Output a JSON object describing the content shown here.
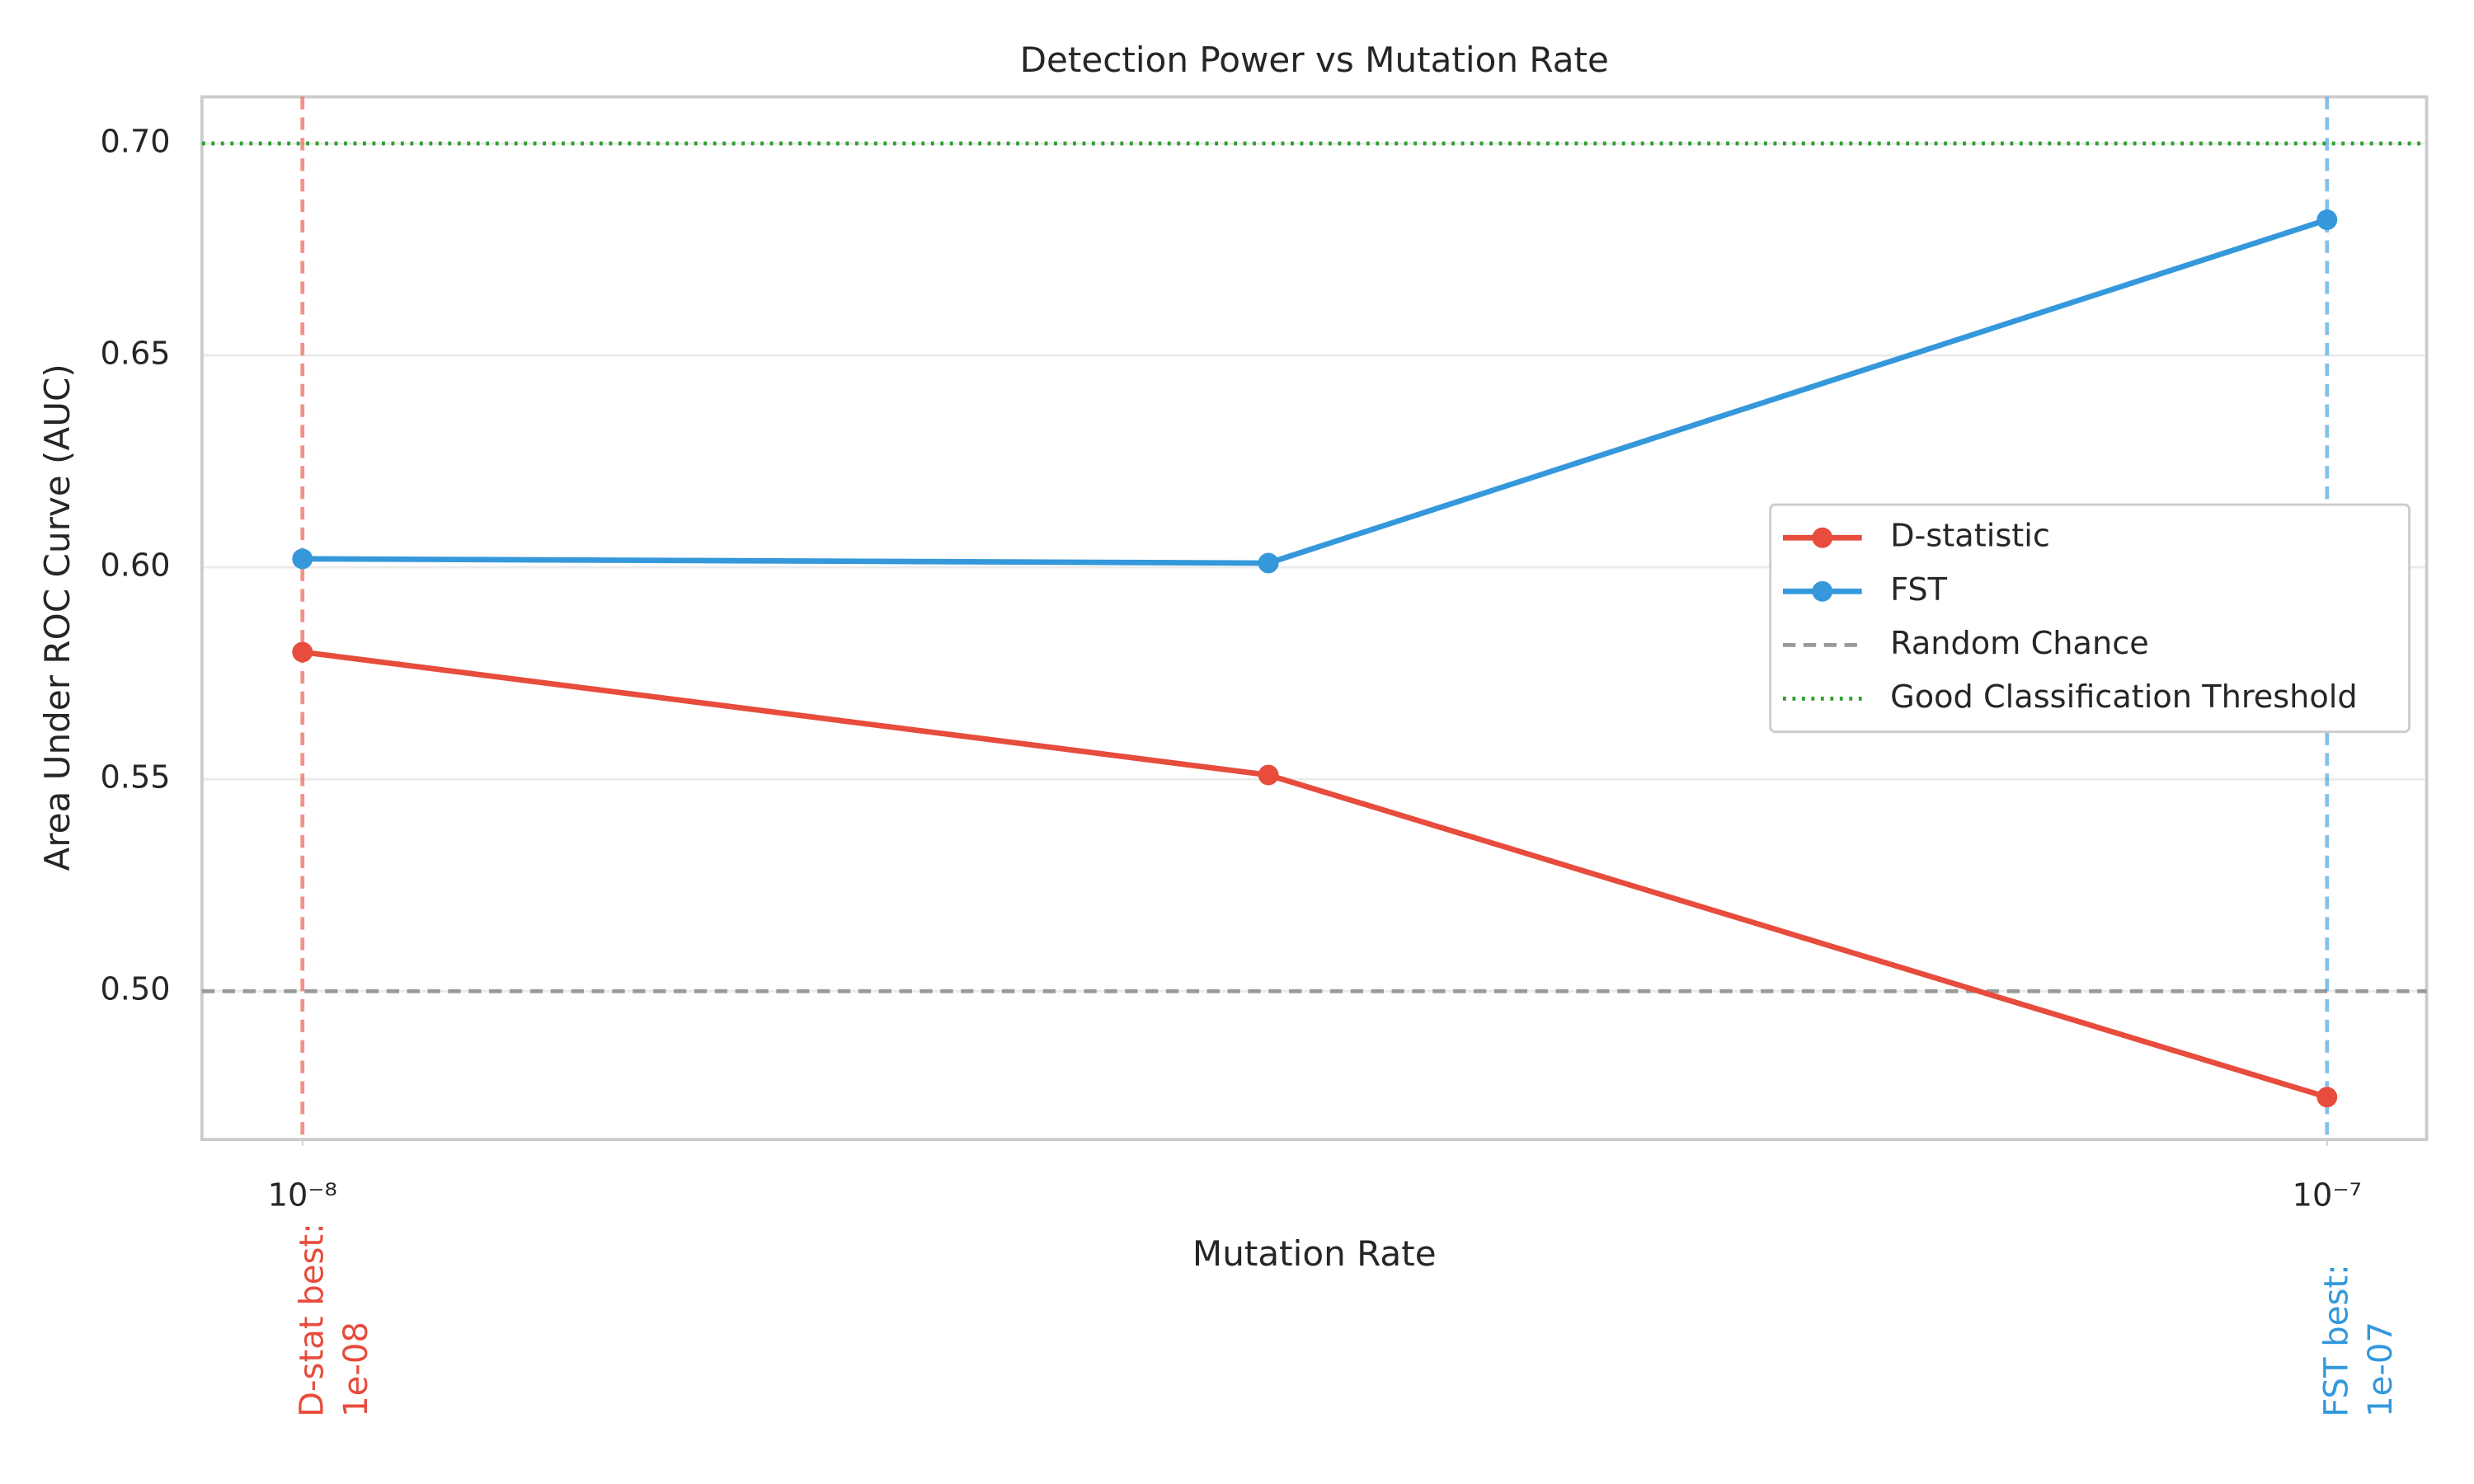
{
  "chart_data": {
    "type": "line",
    "title": "Detection Power vs Mutation Rate",
    "xlabel": "Mutation Rate",
    "ylabel": "Area Under ROC Curve (AUC)",
    "x": [
      1e-08,
      3e-08,
      1e-07
    ],
    "xscale": "log",
    "xlim": [
      8.92e-09,
      1.12e-07
    ],
    "xticks": [
      {
        "value": 1e-08,
        "label": "10⁻⁸"
      },
      {
        "value": 1e-07,
        "label": "10⁻⁷"
      }
    ],
    "ylim": [
      0.465,
      0.711
    ],
    "yticks": [
      {
        "value": 0.5,
        "label": "0.50"
      },
      {
        "value": 0.55,
        "label": "0.55"
      },
      {
        "value": 0.6,
        "label": "0.60"
      },
      {
        "value": 0.65,
        "label": "0.65"
      },
      {
        "value": 0.7,
        "label": "0.70"
      }
    ],
    "grid": true,
    "legend": "center right",
    "series": [
      {
        "name": "D-statistic",
        "color": "#e74c3c",
        "values": [
          0.58,
          0.551,
          0.475
        ]
      },
      {
        "name": "FST",
        "color": "#3498db",
        "values": [
          0.602,
          0.601,
          0.682
        ]
      }
    ],
    "hlines": [
      {
        "name": "Random Chance",
        "y": 0.5,
        "color": "#999999",
        "style": "dashed"
      },
      {
        "name": "Good Classification Threshold",
        "y": 0.7,
        "color": "#2ca02c",
        "style": "dotted"
      }
    ],
    "vlines": [
      {
        "x": 1e-08,
        "color": "#e74c3c",
        "label": [
          "D-stat best:",
          "1e-08"
        ]
      },
      {
        "x": 1e-07,
        "color": "#3498db",
        "label": [
          "FST best:",
          "1e-07"
        ]
      }
    ]
  }
}
